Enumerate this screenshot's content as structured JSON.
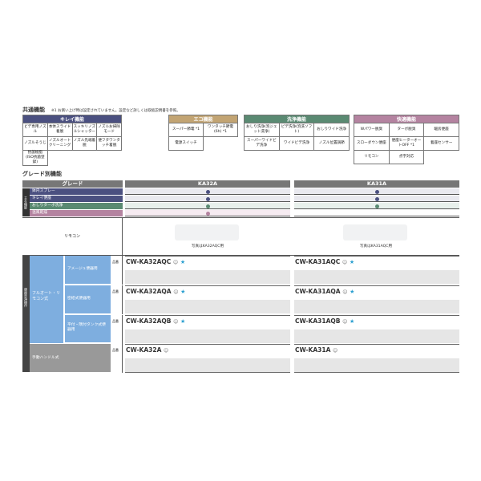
{
  "common": {
    "title": "共通機能",
    "note": "※1 お買い上げ時は設定されていません。設定など詳しくは取扱説明書を参照。"
  },
  "kirei": {
    "title": "キレイ機能",
    "color": "#4b5080",
    "rows": [
      [
        "ビデ専用ノズル",
        "本体スライド着脱",
        "スッキリノズルシャッター",
        "ノズルお掃除モード"
      ],
      [
        "ノズルそうじ",
        "ノズルオートクリーニング",
        "ノズル先端着脱",
        "便フタワンタッチ着脱"
      ],
      [
        "抗菌樹脂(ISO抗菌登録)"
      ]
    ]
  },
  "eco": {
    "title": "エコ機能",
    "color": "#c2a473",
    "rows": [
      [
        "スーパー節電 *1",
        "ワンタッチ節電(6h) *1"
      ],
      [
        "電源スイッチ"
      ]
    ]
  },
  "senjo": {
    "title": "洗浄機能",
    "color": "#5a8a72",
    "rows": [
      [
        "おしり洗浄(泡ジェット洗浄)",
        "ビデ洗浄(泡洗ソフト)",
        "おしりワイド洗浄"
      ],
      [
        "スーパーワイドビデ洗浄",
        "ワイドビデ洗浄",
        "ノズル位置調節"
      ]
    ]
  },
  "kaiteki": {
    "title": "快適機能",
    "color": "#b483a0",
    "rows": [
      [
        "Wパワー脱臭",
        "ターボ脱臭",
        "暖房便座"
      ],
      [
        "スローダウン便座",
        "便座ヒーターオートOFF *1",
        "着座センサー"
      ],
      [
        "リモコン",
        "点字対応"
      ]
    ]
  },
  "grade": {
    "title": "グレード別機能",
    "header": "グレード",
    "models": [
      "KA32A",
      "KA31A"
    ],
    "side_label": "主な機能",
    "features": [
      {
        "label": "鉢内スプレー",
        "color": "#4b5080",
        "bg": "#e9e9ef",
        "has": [
          true,
          true
        ]
      },
      {
        "label": "キレイ便座",
        "color": "#4b5080",
        "bg": "#e9e9ef",
        "has": [
          true,
          true
        ]
      },
      {
        "label": "おしりターボ洗浄",
        "color": "#5a8a72",
        "bg": "#e8f0ec",
        "has": [
          true,
          true
        ]
      },
      {
        "label": "温風乾燥",
        "color": "#b483a0",
        "bg": "#f6ebf1",
        "has": [
          true,
          false
        ]
      }
    ],
    "remocon_label": "リモコン",
    "remocon_captions": [
      "写真はKA32AQC用",
      "写真はKA31AQC用"
    ],
    "operation_label": "便座洗浄操作",
    "full_auto_label": "フルオート・リモコン式",
    "manual_label": "手動ハンドル式",
    "part_label": "品番",
    "rows": [
      {
        "label": "アメージュ便器用",
        "models": [
          "CW-KA32AQC",
          "CW-KA31AQC"
        ],
        "star": true
      },
      {
        "label": "密結式便器用",
        "models": [
          "CW-KA32AQA",
          "CW-KA31AQA"
        ],
        "star": true
      },
      {
        "label": "平付・隅付タンク式便器用",
        "models": [
          "CW-KA32AQB",
          "CW-KA31AQB"
        ],
        "star": true
      },
      {
        "label": "手動ハンドル式",
        "models": [
          "CW-KA32A",
          "CW-KA31A"
        ],
        "star": false
      }
    ]
  }
}
